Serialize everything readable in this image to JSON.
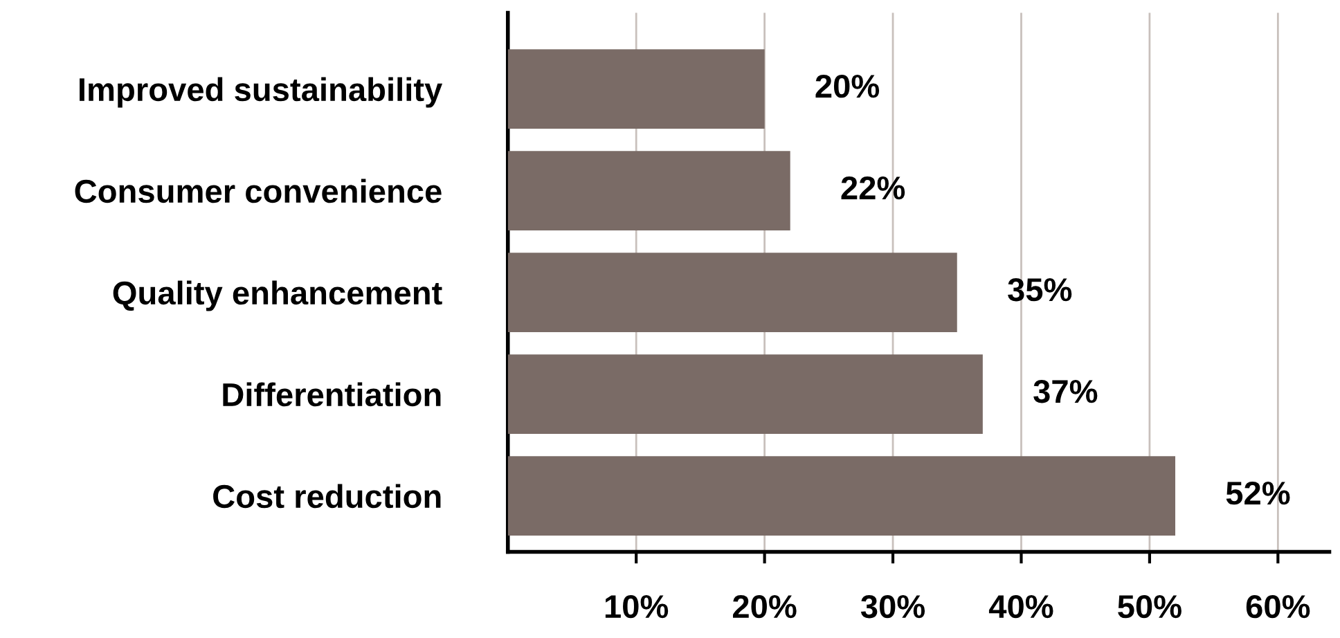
{
  "chart_data": {
    "type": "bar",
    "orientation": "horizontal",
    "categories": [
      "Improved sustainability",
      "Consumer convenience",
      "Quality enhancement",
      "Differentiation",
      "Cost reduction"
    ],
    "values": [
      20,
      22,
      35,
      37,
      52
    ],
    "value_labels": [
      "20%",
      "22%",
      "35%",
      "37%",
      "52%"
    ],
    "color": "#7a6b66",
    "xlim": [
      0,
      64
    ],
    "xticks": [
      {
        "value": 10,
        "label": "10%"
      },
      {
        "value": 20,
        "label": "20%"
      },
      {
        "value": 30,
        "label": "30%"
      },
      {
        "value": 40,
        "label": "40%"
      },
      {
        "value": 50,
        "label": "50%"
      },
      {
        "value": 60,
        "label": "60%"
      }
    ],
    "grid": "x",
    "legend": false
  }
}
